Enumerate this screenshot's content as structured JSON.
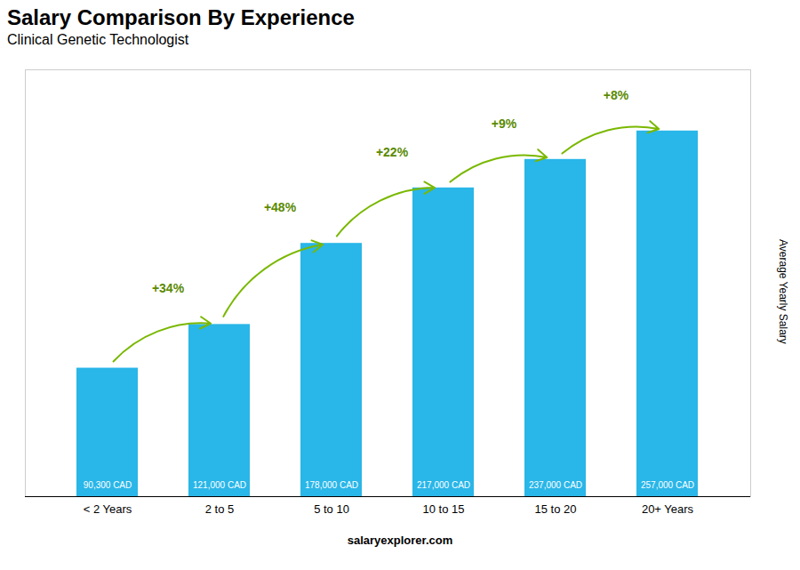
{
  "chart_data": {
    "type": "bar",
    "title": "Salary Comparison By Experience",
    "subtitle": "Clinical Genetic Technologist",
    "categories": [
      "< 2 Years",
      "2 to 5",
      "5 to 10",
      "10 to 15",
      "15 to 20",
      "20+ Years"
    ],
    "values": [
      90300,
      121000,
      178000,
      217000,
      237000,
      257000
    ],
    "value_labels": [
      "90,300 CAD",
      "121,000 CAD",
      "178,000 CAD",
      "217,000 CAD",
      "237,000 CAD",
      "257,000 CAD"
    ],
    "data_labels": true,
    "color": "#29b6e8",
    "ylabel": "Average Yearly Salary",
    "ylim": [
      0,
      300000
    ],
    "tick_labels": "x",
    "grid": false,
    "annotations": [
      "+34%",
      "+48%",
      "+22%",
      "+9%",
      "+8%"
    ],
    "caption": "salaryexplorer.com"
  }
}
